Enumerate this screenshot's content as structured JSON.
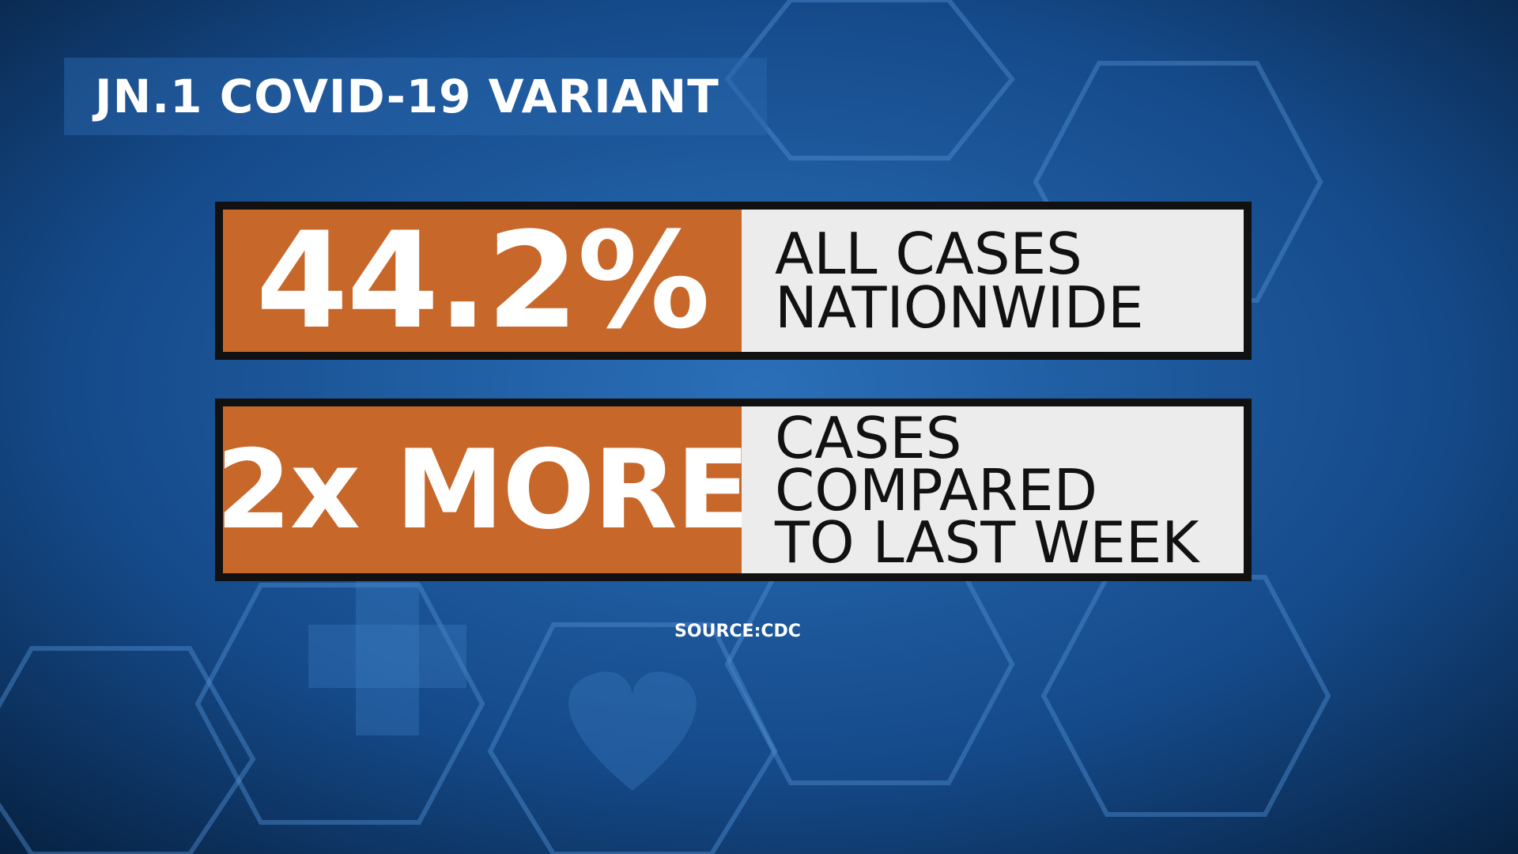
{
  "title": "JN.1 COVID-19 VARIANT",
  "rows": [
    {
      "stat": "44.2%",
      "lines": [
        "ALL CASES",
        "NATIONWIDE"
      ]
    },
    {
      "stat": "2x MORE",
      "lines": [
        "CASES",
        "COMPARED",
        "TO LAST WEEK"
      ]
    }
  ],
  "source": "SOURCE:CDC"
}
